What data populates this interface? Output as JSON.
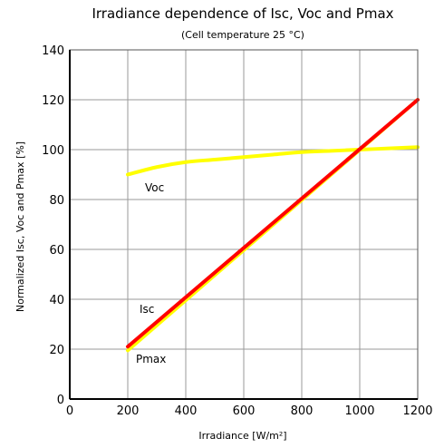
{
  "chart_data": {
    "type": "line",
    "title": "Irradiance dependence of Isc, Voc and Pmax",
    "subtitle": "(Cell temperature 25 °C)",
    "xlabel": "Irradiance  [W/m²]",
    "ylabel": "Normalized Isc, Voc and Pmax [%]",
    "xlim": [
      0,
      1200
    ],
    "ylim": [
      0,
      140
    ],
    "xticks": [
      0,
      200,
      400,
      600,
      800,
      1000,
      1200
    ],
    "yticks": [
      0,
      20,
      40,
      60,
      80,
      100,
      120,
      140
    ],
    "grid": true,
    "series": [
      {
        "name": "Voc",
        "color": "#ffff00",
        "x": [
          200,
          300,
          400,
          500,
          600,
          700,
          800,
          900,
          1000,
          1100,
          1200
        ],
        "y": [
          90,
          93,
          95,
          96,
          97,
          98,
          99,
          99.5,
          100,
          100.5,
          101
        ]
      },
      {
        "name": "Pmax",
        "color": "#ffff00",
        "x": [
          200,
          1200
        ],
        "y": [
          19.5,
          120
        ]
      },
      {
        "name": "Isc",
        "color": "#ff0000",
        "x": [
          200,
          1200
        ],
        "y": [
          21,
          120
        ]
      }
    ]
  }
}
